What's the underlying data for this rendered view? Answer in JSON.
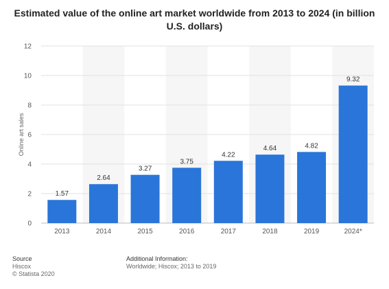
{
  "title": "Estimated value of the online art market worldwide from 2013 to 2024 (in billion U.S. dollars)",
  "chart_data": {
    "type": "bar",
    "title": "Estimated value of the online art market worldwide from 2013 to 2024 (in billion U.S. dollars)",
    "xlabel": "",
    "ylabel": "Online art sales",
    "categories": [
      "2013",
      "2014",
      "2015",
      "2016",
      "2017",
      "2018",
      "2019",
      "2024*"
    ],
    "values": [
      1.57,
      2.64,
      3.27,
      3.75,
      4.22,
      4.64,
      4.82,
      9.32
    ],
    "value_labels": [
      "1.57",
      "2.64",
      "3.27",
      "3.75",
      "4.22",
      "4.64",
      "4.82",
      "9.32"
    ],
    "ylim": [
      0,
      12
    ],
    "yticks": [
      "0",
      "2",
      "4",
      "6",
      "8",
      "10",
      "12"
    ],
    "grid": true,
    "bar_color": "#2a75d9"
  },
  "footer": {
    "source_heading": "Source",
    "source_name": "Hiscox",
    "copyright": "© Statista 2020",
    "info_heading": "Additional Information:",
    "info_text": "Worldwide; Hiscox; 2013 to 2019"
  }
}
